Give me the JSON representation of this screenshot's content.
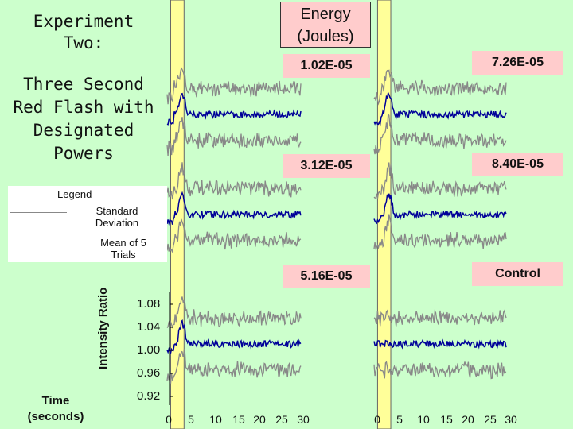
{
  "title": {
    "line1": "Experiment",
    "line2": "Two:",
    "sub1": "Three Second",
    "sub2": "Red Flash with",
    "sub3": "Designated",
    "sub4": "Powers"
  },
  "energy_header": {
    "line1": "Energy",
    "line2": "(Joules)"
  },
  "legend": {
    "title": "Legend",
    "sd_label_1": "Standard",
    "sd_label_2": "Deviation",
    "mean_label_1": "Mean of 5",
    "mean_label_2": "Trials"
  },
  "time_label": {
    "line1": "Time",
    "line2": "(seconds)"
  },
  "colors": {
    "background": "#ccffcc",
    "highlight": "#ffff99",
    "label_bg": "#ffcccc",
    "mean": "#000099",
    "sd": "#888888"
  },
  "chart_data": {
    "type": "line",
    "ylabel": "Intensity Ratio",
    "xlabel": "Time (seconds)",
    "xticks": [
      "0",
      "5",
      "10",
      "15",
      "20",
      "25",
      "30"
    ],
    "yticks": [
      "1.08",
      "1.04",
      "1.00",
      "0.96",
      "0.92"
    ],
    "ylim": [
      0.92,
      1.08
    ],
    "xlim": [
      0,
      30
    ],
    "stimulus_window": [
      0.8,
      3.8
    ],
    "panels": [
      {
        "label": "1.02E-05",
        "col": 0,
        "row": 0
      },
      {
        "label": "7.26E-05",
        "col": 1,
        "row": 0
      },
      {
        "label": "3.12E-05",
        "col": 0,
        "row": 1
      },
      {
        "label": "8.40E-05",
        "col": 1,
        "row": 1
      },
      {
        "label": "5.16E-05",
        "col": 0,
        "row": 2
      },
      {
        "label": "Control",
        "col": 1,
        "row": 2
      }
    ]
  }
}
